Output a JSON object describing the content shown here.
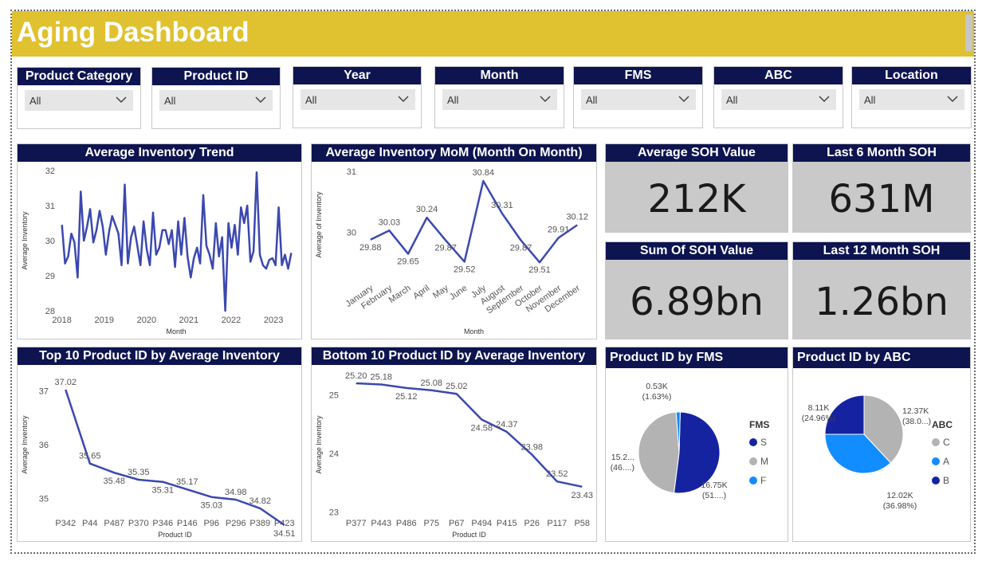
{
  "title": "Aging Dashboard",
  "slicers": [
    {
      "label": "Product Category",
      "value": "All"
    },
    {
      "label": "Product ID",
      "value": "All"
    },
    {
      "label": "Year",
      "value": "All"
    },
    {
      "label": "Month",
      "value": "All"
    },
    {
      "label": "FMS",
      "value": "All"
    },
    {
      "label": "ABC",
      "value": "All"
    },
    {
      "label": "Location",
      "value": "All"
    }
  ],
  "kpis": [
    {
      "label": "Average SOH Value",
      "value": "212K"
    },
    {
      "label": "Last 6 Month SOH",
      "value": "631M"
    },
    {
      "label": "Sum Of SOH Value",
      "value": "6.89bn"
    },
    {
      "label": "Last 12 Month SOH",
      "value": "1.26bn"
    }
  ],
  "colors": {
    "header": "#e0c12f",
    "card_header": "#0d1450",
    "line": "#3b48b0",
    "kpi_bg": "#c9c9c9",
    "pie_dark": "#1523a1",
    "pie_grey": "#b3b3b3",
    "pie_blue": "#118dff"
  },
  "chart_data": [
    {
      "id": "trend",
      "type": "line",
      "title": "Average Inventory Trend",
      "xlabel": "Month",
      "ylabel": "Average Inventory",
      "x_ticks": [
        "2018",
        "2019",
        "2020",
        "2021",
        "2022",
        "2023"
      ],
      "x_range": [
        2017.95,
        2023.45
      ],
      "y_ticks": [
        "28",
        "29",
        "30",
        "31",
        "32"
      ],
      "ylim": [
        28,
        32
      ],
      "series": [
        {
          "values": [
            30.45,
            29.35,
            29.55,
            30.2,
            29.95,
            28.95,
            31.4,
            30.0,
            30.4,
            30.9,
            29.95,
            30.3,
            30.85,
            30.4,
            29.6,
            30.25,
            30.7,
            30.45,
            30.2,
            29.3,
            31.6,
            29.35,
            30.1,
            30.4,
            29.85,
            29.3,
            30.55,
            29.75,
            29.3,
            30.8,
            29.6,
            29.8,
            30.3,
            30.3,
            29.9,
            30.3,
            29.25,
            30.55,
            29.6,
            30.65,
            29.55,
            28.95,
            29.5,
            29.8,
            29.35,
            31.3,
            29.85,
            29.6,
            29.2,
            30.5,
            29.55,
            30.1,
            28.0,
            30.5,
            29.8,
            30.45,
            29.6,
            30.95,
            30.5,
            31.0,
            29.4,
            29.7,
            31.95,
            29.6,
            29.3,
            29.2,
            29.45,
            29.5,
            29.3,
            30.95,
            29.3,
            29.6,
            29.2,
            29.65
          ]
        }
      ]
    },
    {
      "id": "mom",
      "type": "line",
      "title": "Average Inventory MoM (Month On Month)",
      "xlabel": "Month",
      "ylabel": "Average of Inventory",
      "categories": [
        "January",
        "February",
        "March",
        "April",
        "May",
        "June",
        "July",
        "August",
        "September",
        "October",
        "November",
        "December"
      ],
      "y_ticks": [
        "30",
        "31"
      ],
      "ylim": [
        29.2,
        31.05
      ],
      "series": [
        {
          "values": [
            29.88,
            30.03,
            29.65,
            30.24,
            29.87,
            29.52,
            30.84,
            30.31,
            29.87,
            29.51,
            29.91,
            30.12
          ]
        }
      ],
      "data_labels": [
        "29.88",
        "30.03",
        "29.65",
        "30.24",
        "29.87",
        "29.52",
        "30.84",
        "30.31",
        "29.87",
        "29.51",
        "29.91",
        "30.12"
      ]
    },
    {
      "id": "top10",
      "type": "line",
      "title": "Top 10 Product ID by Average Inventory",
      "xlabel": "Product ID",
      "ylabel": "Average Inventory",
      "categories": [
        "P342",
        "P44",
        "P487",
        "P370",
        "P346",
        "P146",
        "P96",
        "P296",
        "P389",
        "P423"
      ],
      "y_ticks": [
        "35",
        "36",
        "37"
      ],
      "ylim": [
        34.7,
        37.3
      ],
      "series": [
        {
          "values": [
            37.02,
            35.65,
            35.48,
            35.35,
            35.31,
            35.17,
            35.03,
            34.98,
            34.82,
            34.51
          ]
        }
      ],
      "data_labels": [
        "37.02",
        "35.65",
        "35.48",
        "35.35",
        "35.31",
        "35.17",
        "35.03",
        "34.98",
        "34.82",
        "34.51"
      ]
    },
    {
      "id": "bottom10",
      "type": "line",
      "title": "Bottom 10 Product ID by Average Inventory",
      "xlabel": "Product ID",
      "ylabel": "Average Inventory",
      "categories": [
        "P377",
        "P443",
        "P486",
        "P75",
        "P67",
        "P494",
        "P415",
        "P26",
        "P117",
        "P58"
      ],
      "y_ticks": [
        "23",
        "24",
        "25"
      ],
      "ylim": [
        22.95,
        25.35
      ],
      "series": [
        {
          "values": [
            25.2,
            25.18,
            25.12,
            25.08,
            25.02,
            24.58,
            24.37,
            23.98,
            23.52,
            23.43
          ]
        }
      ],
      "data_labels": [
        "25.20",
        "25.18",
        "25.12",
        "25.08",
        "25.02",
        "24.58",
        "24.37",
        "23.98",
        "23.52",
        "23.43"
      ]
    },
    {
      "id": "fms",
      "type": "pie",
      "title": "Product ID by FMS",
      "legend_title": "FMS",
      "slices": [
        {
          "name": "S",
          "value": 16.75,
          "pct": 51.0,
          "label1": "16.75K",
          "label2": "(51....)",
          "color": "#1523a1"
        },
        {
          "name": "M",
          "value": 15.2,
          "pct": 46.0,
          "label1": "15.2...",
          "label2": "(46....)",
          "color": "#b3b3b3"
        },
        {
          "name": "F",
          "value": 0.53,
          "pct": 1.63,
          "label1": "0.53K",
          "label2": "(1.63%)",
          "color": "#118dff"
        }
      ]
    },
    {
      "id": "abc",
      "type": "pie",
      "title": "Product ID by ABC",
      "legend_title": "ABC",
      "slices": [
        {
          "name": "C",
          "value": 12.37,
          "pct": 38.0,
          "label1": "12.37K",
          "label2": "(38.0...)",
          "color": "#b3b3b3"
        },
        {
          "name": "A",
          "value": 12.02,
          "pct": 36.98,
          "label1": "12.02K",
          "label2": "(36.98%)",
          "color": "#118dff"
        },
        {
          "name": "B",
          "value": 8.11,
          "pct": 24.96,
          "label1": "8.11K",
          "label2": "(24.96%)",
          "color": "#1523a1"
        }
      ]
    }
  ]
}
